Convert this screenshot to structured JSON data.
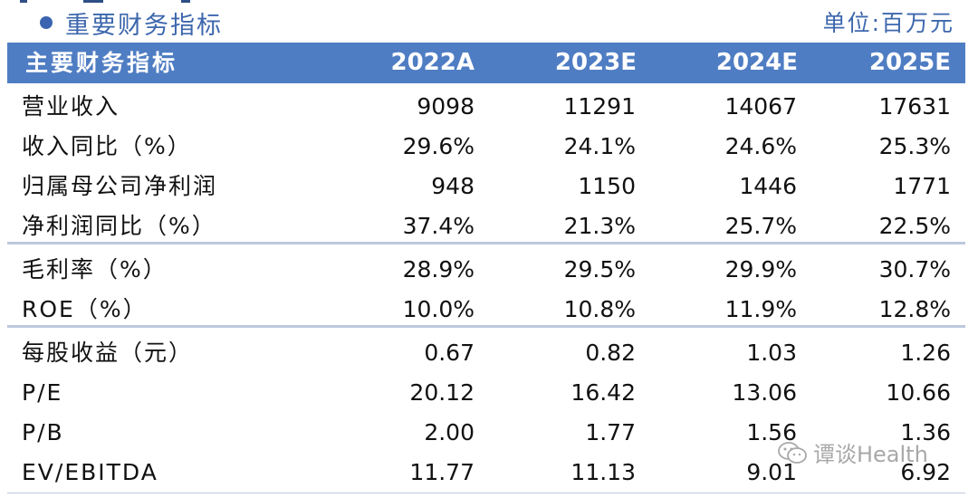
{
  "section_title": "重要财务指标",
  "unit_label": "单位:百万元",
  "header": {
    "label": "主要财务指标",
    "years": [
      "2022A",
      "2023E",
      "2024E",
      "2025E"
    ]
  },
  "rows": [
    {
      "name": "营业收入",
      "values": [
        "9098",
        "11291",
        "14067",
        "17631"
      ]
    },
    {
      "name": "收入同比（%）",
      "values": [
        "29.6%",
        "24.1%",
        "24.6%",
        "25.3%"
      ]
    },
    {
      "name": "归属母公司净利润",
      "values": [
        "948",
        "1150",
        "1446",
        "1771"
      ]
    },
    {
      "name": "净利润同比（%）",
      "values": [
        "37.4%",
        "21.3%",
        "25.7%",
        "22.5%"
      ]
    },
    {
      "name": "毛利率（%）",
      "values": [
        "28.9%",
        "29.5%",
        "29.9%",
        "30.7%"
      ]
    },
    {
      "name": "ROE（%）",
      "values": [
        "10.0%",
        "10.8%",
        "11.9%",
        "12.8%"
      ]
    },
    {
      "name": "每股收益（元）",
      "values": [
        "0.67",
        "0.82",
        "1.03",
        "1.26"
      ]
    },
    {
      "name": "P/E",
      "values": [
        "20.12",
        "16.42",
        "13.06",
        "10.66"
      ]
    },
    {
      "name": "P/B",
      "values": [
        "2.00",
        "1.77",
        "1.56",
        "1.36"
      ]
    },
    {
      "name": "EV/EBITDA",
      "values": [
        "11.77",
        "11.13",
        "9.01",
        "6.92"
      ]
    }
  ],
  "watermark": {
    "icon": "wechat-icon",
    "text": "谭谈Health"
  }
}
